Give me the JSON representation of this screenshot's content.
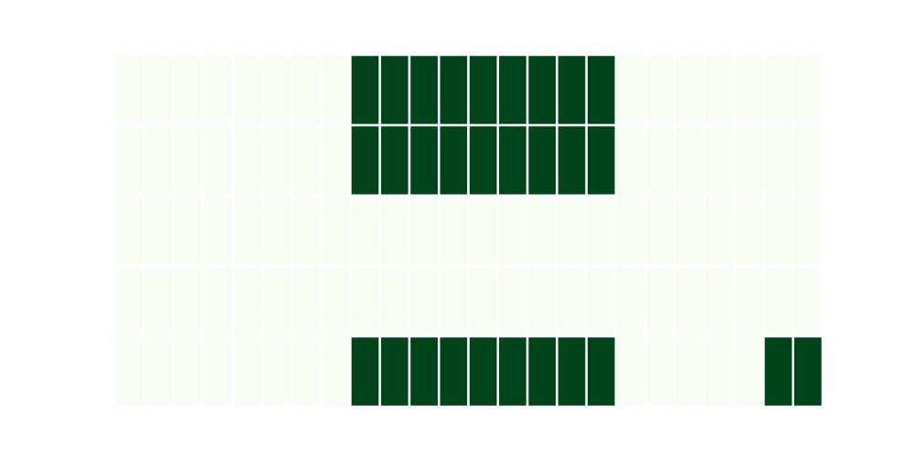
{
  "chart_data": {
    "type": "heatmap",
    "title": "",
    "xlabel": "",
    "ylabel": "",
    "rows": 5,
    "columns": 24,
    "values": [
      [
        0,
        0,
        0,
        0,
        0,
        0,
        0,
        0,
        1,
        1,
        1,
        1,
        1,
        1,
        1,
        1,
        1,
        0,
        0,
        0,
        0,
        0,
        0,
        0
      ],
      [
        0,
        0,
        0,
        0,
        0,
        0,
        0,
        0,
        1,
        1,
        1,
        1,
        1,
        1,
        1,
        1,
        1,
        0,
        0,
        0,
        0,
        0,
        0,
        0
      ],
      [
        0,
        0,
        0,
        0,
        0,
        0,
        0,
        0,
        0,
        0,
        0,
        0,
        0,
        0,
        0,
        0,
        0,
        0,
        0,
        0,
        0,
        0,
        0,
        0
      ],
      [
        0,
        0,
        0,
        0,
        0,
        0,
        0,
        0,
        0,
        0,
        0,
        0,
        0,
        0,
        0,
        0,
        0,
        0,
        0,
        0,
        0,
        0,
        0,
        0
      ],
      [
        0,
        0,
        0,
        0,
        0,
        0,
        0,
        0,
        1,
        1,
        1,
        1,
        1,
        1,
        1,
        1,
        1,
        0,
        0,
        0,
        0,
        0,
        1,
        1
      ]
    ],
    "value_range": [
      0,
      1
    ],
    "colormap": {
      "low": "#f7fcf5",
      "high": "#00441b"
    },
    "grid": false,
    "legend": "none"
  }
}
